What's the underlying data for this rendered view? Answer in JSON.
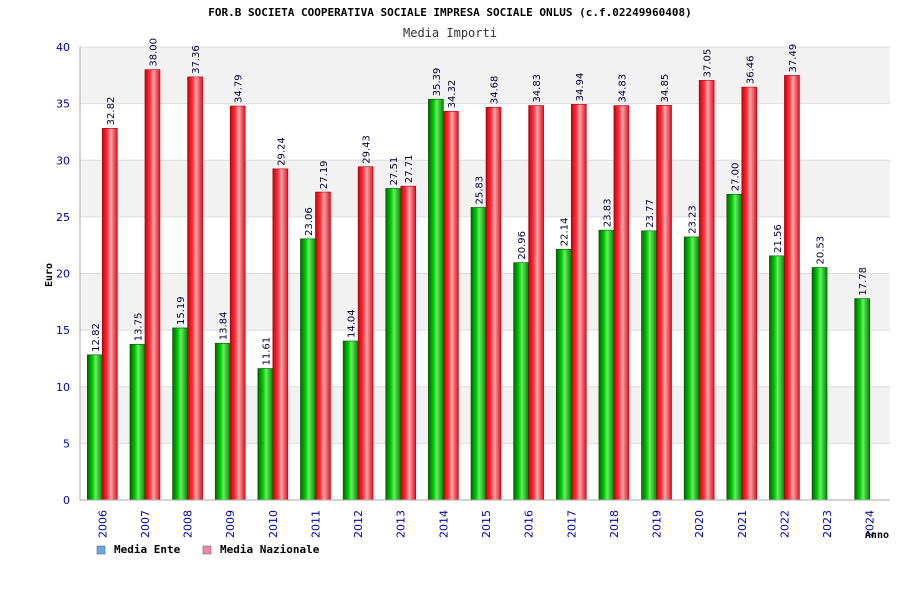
{
  "chart_data": {
    "type": "bar",
    "title": "FOR.B SOCIETA COOPERATIVA SOCIALE IMPRESA SOCIALE ONLUS (c.f.02249960408)",
    "subtitle": "Media Importi",
    "xlabel": "Anno",
    "ylabel": "Euro",
    "ylim": [
      0,
      40
    ],
    "yticks": [
      0,
      5,
      10,
      15,
      20,
      25,
      30,
      35,
      40
    ],
    "grid": true,
    "categories": [
      "2006",
      "2007",
      "2008",
      "2009",
      "2010",
      "2011",
      "2012",
      "2013",
      "2014",
      "2015",
      "2016",
      "2017",
      "2018",
      "2019",
      "2020",
      "2021",
      "2022",
      "2023",
      "2024"
    ],
    "series": [
      {
        "name": "Media Ente",
        "color": "#00aa00",
        "legend_color": "#66aaee",
        "values": [
          12.82,
          13.75,
          15.19,
          13.84,
          11.61,
          23.06,
          14.04,
          27.51,
          35.39,
          25.83,
          20.96,
          22.14,
          23.83,
          23.77,
          23.23,
          27.0,
          21.56,
          20.53,
          17.78
        ],
        "labels": [
          "12.82",
          "13.75",
          "15.19",
          "13.84",
          "11.61",
          "23.06",
          "14.04",
          "27.51",
          "35.39",
          "25.83",
          "20.96",
          "22.14",
          "23.83",
          "23.77",
          "23.23",
          "27.00",
          "21.56",
          "20.53",
          "17.78"
        ]
      },
      {
        "name": "Media Nazionale",
        "color": "#ee2233",
        "legend_color": "#ee88aa",
        "values": [
          32.82,
          38.0,
          37.36,
          34.79,
          29.24,
          27.19,
          29.43,
          27.71,
          34.32,
          34.68,
          34.83,
          34.94,
          34.83,
          34.85,
          37.05,
          36.46,
          37.49,
          null,
          null
        ],
        "labels": [
          "32.82",
          "38.00",
          "37.36",
          "34.79",
          "29.24",
          "27.19",
          "29.43",
          "27.71",
          "34.32",
          "34.68",
          "34.83",
          "34.94",
          "34.83",
          "34.85",
          "37.05",
          "36.46",
          "37.49",
          null,
          null
        ]
      }
    ],
    "legend": "bottom-left"
  }
}
